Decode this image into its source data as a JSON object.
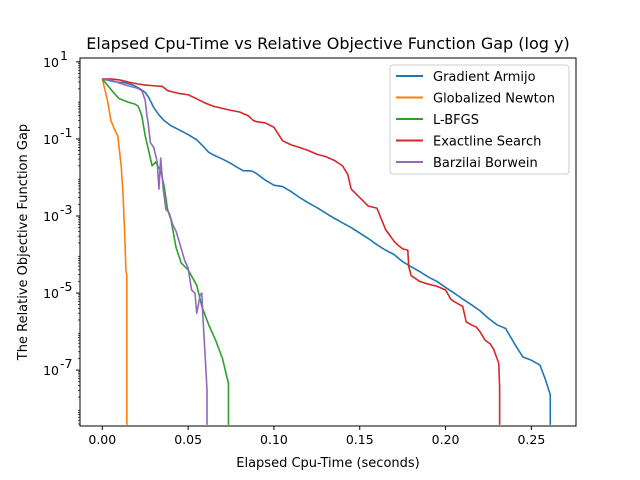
{
  "chart_data": {
    "type": "line",
    "title": "Elapsed Cpu-Time vs Relative Objective Function Gap (log y)",
    "xlabel": "Elapsed Cpu-Time (seconds)",
    "ylabel": "The Relative Objective Function Gap",
    "xlim": [
      -0.013,
      0.276
    ],
    "ylim_log10": [
      -8.45,
      1.1
    ],
    "yscale": "log",
    "grid": false,
    "legend_position": "upper right",
    "x_ticks": [
      {
        "value": 0.0,
        "label": "0.00"
      },
      {
        "value": 0.05,
        "label": "0.05"
      },
      {
        "value": 0.1,
        "label": "0.10"
      },
      {
        "value": 0.15,
        "label": "0.15"
      },
      {
        "value": 0.2,
        "label": "0.20"
      },
      {
        "value": 0.25,
        "label": "0.25"
      }
    ],
    "y_ticks": [
      {
        "exp": 1,
        "label": "10"
      },
      {
        "exp": -1,
        "label": "10"
      },
      {
        "exp": -3,
        "label": "10"
      },
      {
        "exp": -5,
        "label": "10"
      },
      {
        "exp": -7,
        "label": "10"
      }
    ],
    "series": [
      {
        "name": "Gradient Armijo",
        "color": "#1f77b4",
        "points": [
          [
            0.0,
            3.6
          ],
          [
            0.008,
            3.0
          ],
          [
            0.013,
            2.9
          ],
          [
            0.018,
            2.5
          ],
          [
            0.022,
            2.0
          ],
          [
            0.025,
            1.6
          ],
          [
            0.027,
            1.2
          ],
          [
            0.03,
            0.65
          ],
          [
            0.033,
            0.42
          ],
          [
            0.036,
            0.3
          ],
          [
            0.04,
            0.22
          ],
          [
            0.045,
            0.17
          ],
          [
            0.05,
            0.13
          ],
          [
            0.055,
            0.095
          ],
          [
            0.058,
            0.07
          ],
          [
            0.062,
            0.045
          ],
          [
            0.065,
            0.038
          ],
          [
            0.07,
            0.03
          ],
          [
            0.075,
            0.023
          ],
          [
            0.078,
            0.019
          ],
          [
            0.082,
            0.015
          ],
          [
            0.087,
            0.0148
          ],
          [
            0.09,
            0.0125
          ],
          [
            0.095,
            0.0085
          ],
          [
            0.1,
            0.0063
          ],
          [
            0.105,
            0.0058
          ],
          [
            0.11,
            0.0043
          ],
          [
            0.115,
            0.003
          ],
          [
            0.12,
            0.0022
          ],
          [
            0.125,
            0.00165
          ],
          [
            0.13,
            0.0012
          ],
          [
            0.135,
            0.00088
          ],
          [
            0.14,
            0.00066
          ],
          [
            0.145,
            0.0005
          ],
          [
            0.15,
            0.00036
          ],
          [
            0.155,
            0.00026
          ],
          [
            0.16,
            0.00018
          ],
          [
            0.165,
            0.00013
          ],
          [
            0.17,
            0.0001
          ],
          [
            0.175,
            6.5e-05
          ],
          [
            0.18,
            4.8e-05
          ],
          [
            0.185,
            3.6e-05
          ],
          [
            0.19,
            2.6e-05
          ],
          [
            0.195,
            2e-05
          ],
          [
            0.2,
            1.4e-05
          ],
          [
            0.205,
            1e-05
          ],
          [
            0.21,
            7e-06
          ],
          [
            0.215,
            5e-06
          ],
          [
            0.22,
            3.5e-06
          ],
          [
            0.225,
            2.2e-06
          ],
          [
            0.23,
            1.5e-06
          ],
          [
            0.235,
            1.2e-06
          ],
          [
            0.24,
            5e-07
          ],
          [
            0.245,
            2.2e-07
          ],
          [
            0.25,
            1.8e-07
          ],
          [
            0.255,
            1.35e-07
          ],
          [
            0.258,
            6e-08
          ],
          [
            0.261,
            2.3e-08
          ],
          [
            0.261,
            3.8e-09
          ]
        ]
      },
      {
        "name": "Globalized Newton",
        "color": "#ff7f0e",
        "points": [
          [
            0.0,
            3.6
          ],
          [
            0.003,
            1.0
          ],
          [
            0.005,
            0.3
          ],
          [
            0.007,
            0.18
          ],
          [
            0.009,
            0.12
          ],
          [
            0.011,
            0.02
          ],
          [
            0.012,
            0.004
          ],
          [
            0.013,
            0.0004
          ],
          [
            0.0138,
            3.5e-05
          ],
          [
            0.0143,
            3e-05
          ],
          [
            0.0143,
            3.8e-09
          ]
        ]
      },
      {
        "name": "L-BFGS",
        "color": "#2ca02c",
        "points": [
          [
            0.0,
            3.6
          ],
          [
            0.004,
            2.2
          ],
          [
            0.007,
            1.5
          ],
          [
            0.01,
            1.1
          ],
          [
            0.015,
            0.9
          ],
          [
            0.019,
            0.8
          ],
          [
            0.021,
            0.7
          ],
          [
            0.023,
            0.4
          ],
          [
            0.025,
            0.12
          ],
          [
            0.027,
            0.05
          ],
          [
            0.029,
            0.02
          ],
          [
            0.031,
            0.025
          ],
          [
            0.034,
            0.015
          ],
          [
            0.036,
            0.006
          ],
          [
            0.038,
            0.0015
          ],
          [
            0.04,
            0.0008
          ],
          [
            0.043,
            0.00015
          ],
          [
            0.046,
            6e-05
          ],
          [
            0.05,
            4e-05
          ],
          [
            0.055,
            1.6e-05
          ],
          [
            0.058,
            4.5e-06
          ],
          [
            0.062,
            1.5e-06
          ],
          [
            0.066,
            6e-07
          ],
          [
            0.07,
            2e-07
          ],
          [
            0.0735,
            4.5e-08
          ],
          [
            0.0735,
            3.8e-09
          ]
        ]
      },
      {
        "name": "Exactline Search",
        "color": "#d62728",
        "points": [
          [
            0.0,
            3.6
          ],
          [
            0.005,
            3.6
          ],
          [
            0.01,
            3.4
          ],
          [
            0.015,
            3.0
          ],
          [
            0.02,
            2.7
          ],
          [
            0.025,
            2.5
          ],
          [
            0.03,
            2.4
          ],
          [
            0.035,
            2.3
          ],
          [
            0.038,
            1.8
          ],
          [
            0.04,
            1.7
          ],
          [
            0.045,
            1.5
          ],
          [
            0.05,
            1.4
          ],
          [
            0.055,
            1.1
          ],
          [
            0.06,
            0.85
          ],
          [
            0.065,
            0.7
          ],
          [
            0.07,
            0.62
          ],
          [
            0.075,
            0.55
          ],
          [
            0.08,
            0.5
          ],
          [
            0.085,
            0.4
          ],
          [
            0.088,
            0.3
          ],
          [
            0.09,
            0.28
          ],
          [
            0.095,
            0.26
          ],
          [
            0.1,
            0.2
          ],
          [
            0.105,
            0.09
          ],
          [
            0.11,
            0.07
          ],
          [
            0.115,
            0.06
          ],
          [
            0.12,
            0.05
          ],
          [
            0.125,
            0.04
          ],
          [
            0.13,
            0.035
          ],
          [
            0.135,
            0.028
          ],
          [
            0.14,
            0.02
          ],
          [
            0.143,
            0.012
          ],
          [
            0.145,
            0.005
          ],
          [
            0.15,
            0.003
          ],
          [
            0.155,
            0.0018
          ],
          [
            0.16,
            0.0016
          ],
          [
            0.165,
            0.00045
          ],
          [
            0.17,
            0.00022
          ],
          [
            0.172,
            0.00018
          ],
          [
            0.175,
            0.00014
          ],
          [
            0.178,
            0.00013
          ],
          [
            0.1785,
            5e-05
          ],
          [
            0.18,
            2.8e-05
          ],
          [
            0.185,
            2e-05
          ],
          [
            0.19,
            1.7e-05
          ],
          [
            0.195,
            1.5e-05
          ],
          [
            0.2,
            1.2e-05
          ],
          [
            0.203,
            7e-06
          ],
          [
            0.205,
            6e-06
          ],
          [
            0.21,
            4.5e-06
          ],
          [
            0.212,
            1.8e-06
          ],
          [
            0.215,
            1.5e-06
          ],
          [
            0.218,
            1.3e-06
          ],
          [
            0.22,
            1e-06
          ],
          [
            0.223,
            6e-07
          ],
          [
            0.226,
            4.8e-07
          ],
          [
            0.228,
            3.5e-07
          ],
          [
            0.231,
            1.5e-07
          ],
          [
            0.2315,
            3.5e-08
          ],
          [
            0.2315,
            3.8e-09
          ]
        ]
      },
      {
        "name": "Barzilai Borwein",
        "color": "#9467bd",
        "points": [
          [
            0.0,
            3.6
          ],
          [
            0.005,
            3.4
          ],
          [
            0.01,
            2.8
          ],
          [
            0.015,
            2.4
          ],
          [
            0.02,
            2.1
          ],
          [
            0.023,
            1.8
          ],
          [
            0.025,
            1.0
          ],
          [
            0.026,
            0.4
          ],
          [
            0.0265,
            0.3
          ],
          [
            0.027,
            0.2
          ],
          [
            0.028,
            0.08
          ],
          [
            0.03,
            0.06
          ],
          [
            0.032,
            0.025
          ],
          [
            0.033,
            0.005
          ],
          [
            0.034,
            0.032
          ],
          [
            0.0355,
            0.005
          ],
          [
            0.037,
            0.0015
          ],
          [
            0.039,
            0.0012
          ],
          [
            0.041,
            0.0006
          ],
          [
            0.043,
            0.0004
          ],
          [
            0.045,
            0.0002
          ],
          [
            0.048,
            7e-05
          ],
          [
            0.05,
            4.5e-05
          ],
          [
            0.052,
            1.2e-05
          ],
          [
            0.054,
            1e-05
          ],
          [
            0.055,
            3e-06
          ],
          [
            0.056,
            5e-06
          ],
          [
            0.057,
            9e-06
          ],
          [
            0.058,
            1e-05
          ],
          [
            0.0585,
            3e-06
          ],
          [
            0.06,
            2e-07
          ],
          [
            0.061,
            3e-08
          ],
          [
            0.061,
            3.8e-09
          ]
        ]
      }
    ]
  }
}
